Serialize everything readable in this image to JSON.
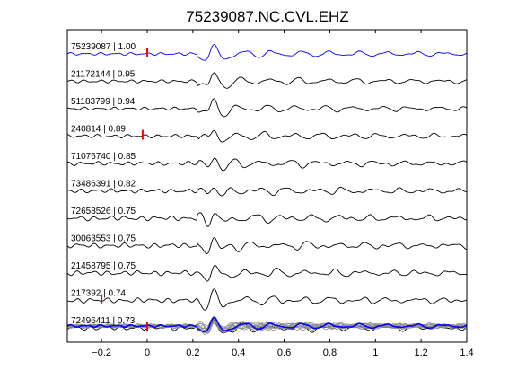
{
  "chart_data": {
    "type": "line",
    "title": "75239087.NC.CVL.EHZ",
    "xlabel": "",
    "ylabel": "",
    "xlim": [
      -0.35,
      1.4
    ],
    "xticks": [
      {
        "value": -0.2,
        "label": "−0.2"
      },
      {
        "value": 0,
        "label": "0"
      },
      {
        "value": 0.2,
        "label": "0.2"
      },
      {
        "value": 0.4,
        "label": "0.4"
      },
      {
        "value": 0.6,
        "label": "0.6"
      },
      {
        "value": 0.8,
        "label": "0.8"
      },
      {
        "value": 1.0,
        "label": "1"
      },
      {
        "value": 1.2,
        "label": "1.2"
      },
      {
        "value": 1.4,
        "label": "1.4"
      }
    ],
    "grid": false,
    "legend": "none",
    "colors": {
      "reference_trace": "#0000ff",
      "other_traces": "#000000",
      "stack_traces": "#8c8c8c",
      "pick_marker": "#ff0000",
      "axes": "#000000"
    },
    "traces": [
      {
        "label": "75239087 | 1.00",
        "correlation": 1.0,
        "pick_time": 0.0,
        "reference": true
      },
      {
        "label": "21172144 | 0.95",
        "correlation": 0.95
      },
      {
        "label": "51183799 | 0.94",
        "correlation": 0.94
      },
      {
        "label": "240814 | 0.89",
        "correlation": 0.89,
        "pick_time": -0.02
      },
      {
        "label": "71076740 | 0.85",
        "correlation": 0.85
      },
      {
        "label": "73486391 | 0.82",
        "correlation": 0.82
      },
      {
        "label": "72658526 | 0.75",
        "correlation": 0.75
      },
      {
        "label": "30063553 | 0.75",
        "correlation": 0.75
      },
      {
        "label": "21458795 | 0.75",
        "correlation": 0.75
      },
      {
        "label": "217392 | 0.74",
        "correlation": 0.74,
        "pick_time": -0.2
      },
      {
        "label": "72496411 | 0.73",
        "correlation": 0.73,
        "pick_time": 0.0
      }
    ],
    "stack": {
      "description_visible": false
    }
  }
}
